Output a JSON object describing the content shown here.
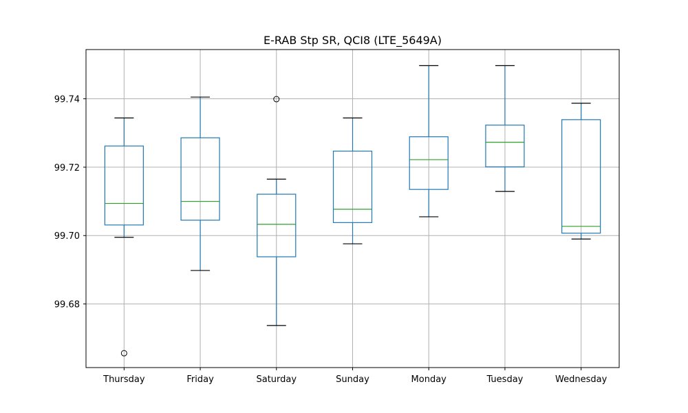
{
  "chart_data": {
    "type": "box",
    "title": "E-RAB Stp SR, QCI8 (LTE_5649A)",
    "xlabel": "",
    "ylabel": "",
    "grid": true,
    "ylim": [
      99.6614,
      99.7544
    ],
    "yticks": [
      99.68,
      99.7,
      99.72,
      99.74
    ],
    "ytick_labels": [
      "99.68",
      "99.70",
      "99.72",
      "99.74"
    ],
    "categories": [
      "Thursday",
      "Friday",
      "Saturday",
      "Sunday",
      "Monday",
      "Tuesday",
      "Wednesday"
    ],
    "boxes": [
      {
        "whisker_low": 99.6995,
        "q1": 99.7031,
        "median": 99.7094,
        "q3": 99.7262,
        "whisker_high": 99.7344,
        "outliers": [
          99.6656
        ]
      },
      {
        "whisker_low": 99.6898,
        "q1": 99.7045,
        "median": 99.71,
        "q3": 99.7286,
        "whisker_high": 99.7405,
        "outliers": []
      },
      {
        "whisker_low": 99.6737,
        "q1": 99.6938,
        "median": 99.7033,
        "q3": 99.7121,
        "whisker_high": 99.7165,
        "outliers": [
          99.7399
        ]
      },
      {
        "whisker_low": 99.6976,
        "q1": 99.7038,
        "median": 99.7077,
        "q3": 99.7247,
        "whisker_high": 99.7344,
        "outliers": []
      },
      {
        "whisker_low": 99.7055,
        "q1": 99.7135,
        "median": 99.7222,
        "q3": 99.7289,
        "whisker_high": 99.7497,
        "outliers": []
      },
      {
        "whisker_low": 99.7129,
        "q1": 99.7201,
        "median": 99.7273,
        "q3": 99.7323,
        "whisker_high": 99.7497,
        "outliers": []
      },
      {
        "whisker_low": 99.699,
        "q1": 99.7007,
        "median": 99.7027,
        "q3": 99.7339,
        "whisker_high": 99.7387,
        "outliers": []
      }
    ],
    "colors": {
      "box": "#1f77b4",
      "median": "#2ca02c",
      "grid": "#b0b0b0",
      "axis": "#000000"
    }
  }
}
